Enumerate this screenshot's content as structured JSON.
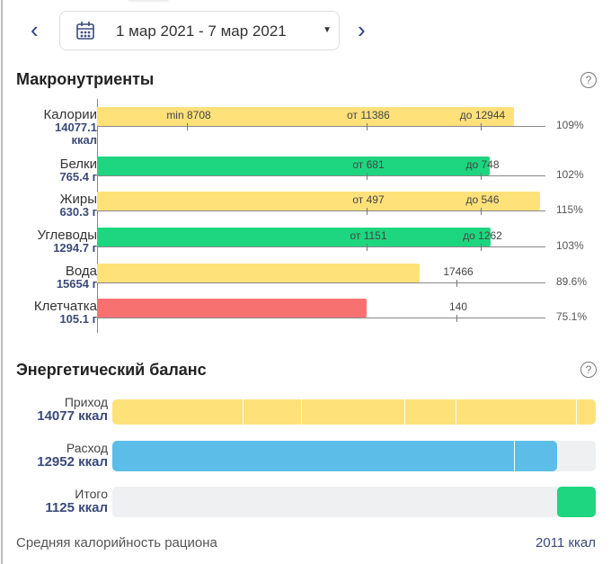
{
  "date_picker": {
    "range": "1 мар 2021 - 7 мар 2021",
    "prev_icon": "chevron-left-icon",
    "next_icon": "chevron-right-icon",
    "calendar_icon": "calendar-icon"
  },
  "macros": {
    "title": "Макронутриенты",
    "help": "?",
    "rows": [
      {
        "name": "Калории",
        "value": "14077.1",
        "unit": "ккал",
        "amount": 14077.1,
        "min": "min 8708",
        "from": "от 11386",
        "to": "до 12944",
        "upper": 12944,
        "percent": "109%",
        "color": "#FFE17A"
      },
      {
        "name": "Белки",
        "value": "765.4 г",
        "amount": 765.4,
        "from": "от 681",
        "to": "до 748",
        "upper": 748,
        "percent": "102%",
        "color": "#1ED67F"
      },
      {
        "name": "Жиры",
        "value": "630.3 г",
        "amount": 630.3,
        "from": "от 497",
        "to": "до 546",
        "upper": 546,
        "percent": "115%",
        "color": "#FFE17A"
      },
      {
        "name": "Углеводы",
        "value": "1294.7 г",
        "amount": 1294.7,
        "from": "от 1151",
        "to": "до 1262",
        "upper": 1262,
        "percent": "103%",
        "color": "#1ED67F"
      },
      {
        "name": "Вода",
        "value": "15654 г",
        "amount": 15654,
        "target": "17466",
        "target_value": 17466,
        "percent": "89.6%",
        "color": "#FFE17A"
      },
      {
        "name": "Клетчатка",
        "value": "105.1 г",
        "amount": 105.1,
        "target": "140",
        "target_value": 140,
        "percent": "75.1%",
        "color": "#F87171"
      }
    ]
  },
  "energy": {
    "title": "Энергетический баланс",
    "help": "?",
    "scale_max": 14077,
    "rows": [
      {
        "name": "Приход",
        "value": "14077 ккал",
        "amount": 14077,
        "color": "#FFE17A",
        "segments": [
          3800,
          5500,
          8500,
          10000,
          13500
        ]
      },
      {
        "name": "Расход",
        "value": "12952 ккал",
        "amount": 12952,
        "color": "#5BBDE8",
        "segments": [
          11700
        ]
      },
      {
        "name": "Итого",
        "value": "1125 ккал",
        "amount": 1125,
        "color": "#1ED67F",
        "align": "right"
      }
    ],
    "avg_label": "Средняя калорийность рациона",
    "avg_value": "2011 ккал"
  }
}
